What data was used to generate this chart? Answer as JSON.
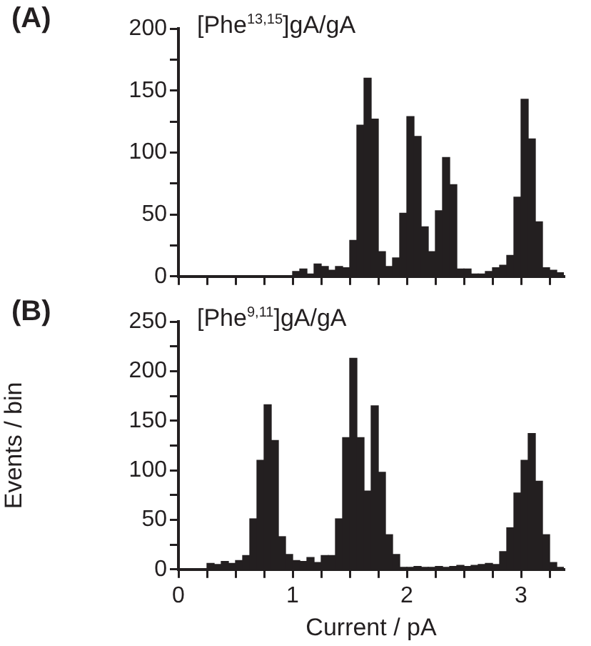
{
  "chart_data": [
    {
      "type": "histogram",
      "title": "[Phe$^{13,15}$]gA/gA",
      "annotations": [
        "(A)"
      ],
      "bins": [
        0,
        0.0625,
        0.125,
        0.1875,
        0.25,
        0.3125,
        0.375,
        0.4375,
        0.5,
        0.5625,
        0.625,
        0.6875,
        0.75,
        0.8125,
        0.875,
        0.9375,
        1,
        1.0625,
        1.125,
        1.1875,
        1.25,
        1.3125,
        1.375,
        1.4375,
        1.5,
        1.5625,
        1.625,
        1.6875,
        1.75,
        1.8125,
        1.875,
        1.9375,
        2,
        2.0625,
        2.125,
        2.1875,
        2.25,
        2.3125,
        2.375,
        2.4375,
        2.5,
        2.5625,
        2.625,
        2.6875,
        2.75,
        2.8125,
        2.875,
        2.9375,
        3,
        3.0625,
        3.125,
        3.1875,
        3.25,
        3.3125,
        3.375
      ],
      "values": [
        0,
        0,
        0,
        0,
        0,
        0,
        0,
        0,
        0,
        0,
        0,
        0,
        0,
        0,
        0,
        0,
        4,
        6,
        2,
        10,
        8,
        5,
        8,
        7,
        29,
        122,
        160,
        127,
        20,
        8,
        15,
        51,
        129,
        113,
        40,
        20,
        53,
        96,
        74,
        6,
        6,
        2,
        2,
        4,
        7,
        9,
        17,
        64,
        143,
        111,
        44,
        7,
        5,
        3
      ],
      "color": "#231f20",
      "xlim": [
        0,
        3.375
      ],
      "xticks": [
        0,
        {
          "value": 0.25,
          "label": null
        },
        {
          "value": 0.5,
          "label": null
        },
        {
          "value": 0.75,
          "label": null
        },
        1,
        {
          "value": 1.25,
          "label": null
        },
        {
          "value": 1.5,
          "label": null
        },
        {
          "value": 1.75,
          "label": null
        },
        2,
        {
          "value": 2.25,
          "label": null
        },
        {
          "value": 2.5,
          "label": null
        },
        {
          "value": 2.75,
          "label": null
        },
        3,
        {
          "value": 3.25,
          "label": null
        }
      ],
      "ylim": [
        0,
        200
      ],
      "yticks": [
        0,
        {
          "value": 25,
          "label": null
        },
        50,
        {
          "value": 75,
          "label": null
        },
        100,
        {
          "value": 125,
          "label": null
        },
        150,
        {
          "value": 175,
          "label": null
        },
        200
      ],
      "tick_labels": "y",
      "grid": false,
      "legend": false
    },
    {
      "type": "histogram",
      "title": "[Phe$^{9,11}$]gA/gA",
      "annotations": [
        "(B)"
      ],
      "xlabel": "Current / pA",
      "ylabel": "Events / bin",
      "bins": [
        0,
        0.0625,
        0.125,
        0.1875,
        0.25,
        0.3125,
        0.375,
        0.4375,
        0.5,
        0.5625,
        0.625,
        0.6875,
        0.75,
        0.8125,
        0.875,
        0.9375,
        1,
        1.0625,
        1.125,
        1.1875,
        1.25,
        1.3125,
        1.375,
        1.4375,
        1.5,
        1.5625,
        1.625,
        1.6875,
        1.75,
        1.8125,
        1.875,
        1.9375,
        2,
        2.0625,
        2.125,
        2.1875,
        2.25,
        2.3125,
        2.375,
        2.4375,
        2.5,
        2.5625,
        2.625,
        2.6875,
        2.75,
        2.8125,
        2.875,
        2.9375,
        3,
        3.0625,
        3.125,
        3.1875,
        3.25,
        3.3125,
        3.375
      ],
      "values": [
        0,
        0,
        0,
        0,
        6,
        5,
        8,
        6,
        9,
        14,
        51,
        110,
        166,
        130,
        33,
        15,
        9,
        8,
        12,
        7,
        14,
        14,
        51,
        133,
        213,
        133,
        79,
        165,
        98,
        35,
        15,
        2,
        2,
        3,
        2,
        2,
        3,
        2,
        3,
        4,
        3,
        4,
        5,
        6,
        5,
        18,
        42,
        77,
        110,
        137,
        89,
        35,
        7,
        2
      ],
      "color": "#231f20",
      "xlim": [
        0,
        3.375
      ],
      "xticks": [
        0,
        {
          "value": 0.25,
          "label": null
        },
        {
          "value": 0.5,
          "label": null
        },
        {
          "value": 0.75,
          "label": null
        },
        1,
        {
          "value": 1.25,
          "label": null
        },
        {
          "value": 1.5,
          "label": null
        },
        {
          "value": 1.75,
          "label": null
        },
        2,
        {
          "value": 2.25,
          "label": null
        },
        {
          "value": 2.5,
          "label": null
        },
        {
          "value": 2.75,
          "label": null
        },
        3,
        {
          "value": 3.25,
          "label": null
        }
      ],
      "ylim": [
        0,
        250
      ],
      "yticks": [
        0,
        {
          "value": 25,
          "label": null
        },
        50,
        {
          "value": 75,
          "label": null
        },
        100,
        {
          "value": 125,
          "label": null
        },
        150,
        {
          "value": 175,
          "label": null
        },
        200,
        {
          "value": 225,
          "label": null
        },
        250
      ],
      "grid": false,
      "legend": false
    }
  ]
}
